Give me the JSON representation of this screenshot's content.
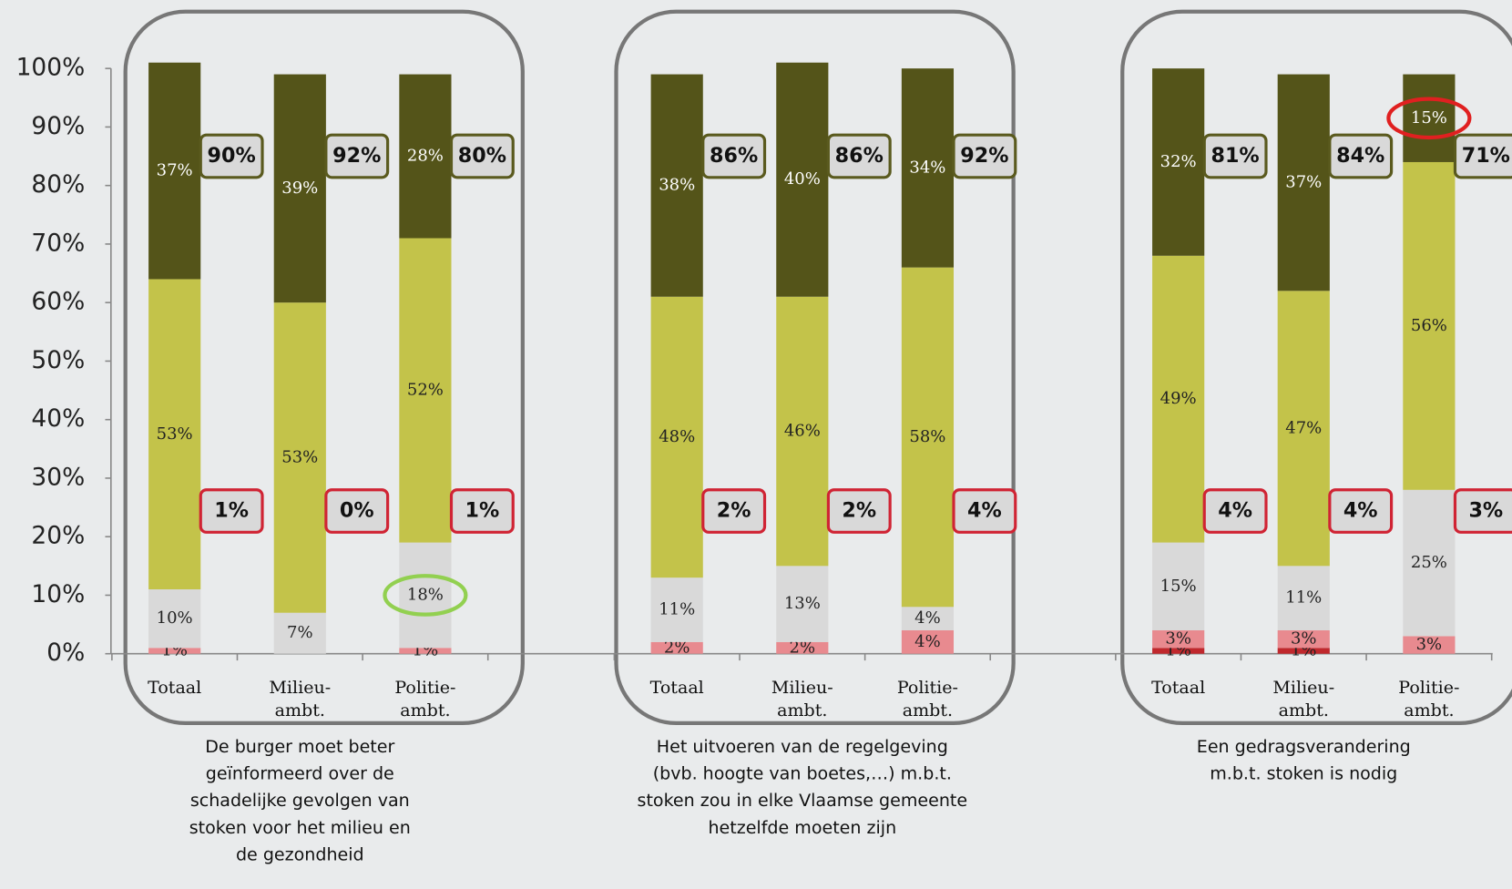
{
  "chart_data": [
    {
      "type": "stacked-bar",
      "categories": [
        [
          "Totaal"
        ],
        [
          "Milieu-",
          "ambt."
        ],
        [
          "Politie-",
          "ambt."
        ]
      ],
      "series": [
        {
          "color": "#e88a8f",
          "values": [
            1,
            null,
            1
          ],
          "value_labels": [
            "1%",
            null,
            "1%"
          ]
        },
        {
          "color": "#d9d9d9",
          "values": [
            10,
            7,
            18
          ],
          "value_labels": [
            "10%",
            "7%",
            "18%"
          ]
        },
        {
          "color": "#c3c34a",
          "values": [
            53,
            53,
            52
          ],
          "value_labels": [
            "53%",
            "53%",
            "52%"
          ]
        },
        {
          "color": "#545419",
          "values": [
            37,
            39,
            28
          ],
          "value_labels": [
            "37%",
            "39%",
            "28%"
          ]
        }
      ],
      "top_box": {
        "values": [
          90,
          92,
          80
        ],
        "value_labels": [
          "90%",
          "92%",
          "80%"
        ],
        "color": "#5a5a1e"
      },
      "bottom_box": {
        "values": [
          1,
          0,
          1
        ],
        "value_labels": [
          "1%",
          "0%",
          "1%"
        ],
        "color": "#d02434"
      },
      "highlight": {
        "series": 1,
        "index": 2,
        "color": "#92d050"
      },
      "ylim": [
        0,
        100
      ],
      "yticks": [
        {
          "value": 0,
          "label": "0%"
        },
        {
          "value": 10,
          "label": "10%"
        },
        {
          "value": 20,
          "label": "20%"
        },
        {
          "value": 30,
          "label": "30%"
        },
        {
          "value": 40,
          "label": "40%"
        },
        {
          "value": 50,
          "label": "50%"
        },
        {
          "value": 60,
          "label": "60%"
        },
        {
          "value": 70,
          "label": "70%"
        },
        {
          "value": 80,
          "label": "80%"
        },
        {
          "value": 90,
          "label": "90%"
        },
        {
          "value": 100,
          "label": "100%"
        }
      ],
      "caption": [
        "De burger moet beter",
        "geïnformeerd over de",
        "schadelijke gevolgen van",
        "stoken voor het milieu en",
        "de gezondheid"
      ]
    },
    {
      "type": "stacked-bar",
      "categories": [
        [
          "Totaal"
        ],
        [
          "Milieu-",
          "ambt."
        ],
        [
          "Politie-",
          "ambt."
        ]
      ],
      "series": [
        {
          "color": "#e88a8f",
          "values": [
            2,
            2,
            4
          ],
          "value_labels": [
            "2%",
            "2%",
            "4%"
          ]
        },
        {
          "color": "#d9d9d9",
          "values": [
            11,
            13,
            4
          ],
          "value_labels": [
            "11%",
            "13%",
            "4%"
          ]
        },
        {
          "color": "#c3c34a",
          "values": [
            48,
            46,
            58
          ],
          "value_labels": [
            "48%",
            "46%",
            "58%"
          ]
        },
        {
          "color": "#545419",
          "values": [
            38,
            40,
            34
          ],
          "value_labels": [
            "38%",
            "40%",
            "34%"
          ]
        }
      ],
      "top_box": {
        "values": [
          86,
          86,
          92
        ],
        "value_labels": [
          "86%",
          "86%",
          "92%"
        ],
        "color": "#5a5a1e"
      },
      "bottom_box": {
        "values": [
          2,
          2,
          4
        ],
        "value_labels": [
          "2%",
          "2%",
          "4%"
        ],
        "color": "#d02434"
      },
      "ylim": [
        0,
        100
      ],
      "caption": [
        "Het uitvoeren van de regelgeving",
        "(bvb. hoogte van boetes,…) m.b.t.",
        "stoken zou in elke Vlaamse gemeente",
        "hetzelfde moeten zijn"
      ]
    },
    {
      "type": "stacked-bar",
      "categories": [
        [
          "Totaal"
        ],
        [
          "Milieu-",
          "ambt."
        ],
        [
          "Politie-",
          "ambt."
        ]
      ],
      "series": [
        {
          "color": "#c0282d",
          "values": [
            1,
            1,
            null
          ],
          "value_labels": [
            "1%",
            "1%",
            null
          ]
        },
        {
          "color": "#e88a8f",
          "values": [
            3,
            3,
            3
          ],
          "value_labels": [
            "3%",
            "3%",
            "3%"
          ]
        },
        {
          "color": "#d9d9d9",
          "values": [
            15,
            11,
            25
          ],
          "value_labels": [
            "15%",
            "11%",
            "25%"
          ]
        },
        {
          "color": "#c3c34a",
          "values": [
            49,
            47,
            56
          ],
          "value_labels": [
            "49%",
            "47%",
            "56%"
          ]
        },
        {
          "color": "#545419",
          "values": [
            32,
            37,
            15
          ],
          "value_labels": [
            "32%",
            "37%",
            "15%"
          ]
        }
      ],
      "top_box": {
        "values": [
          81,
          84,
          71
        ],
        "value_labels": [
          "81%",
          "84%",
          "71%"
        ],
        "color": "#5a5a1e"
      },
      "bottom_box": {
        "values": [
          4,
          4,
          3
        ],
        "value_labels": [
          "4%",
          "4%",
          "3%"
        ],
        "color": "#d02434"
      },
      "highlight": {
        "series": 4,
        "index": 2,
        "color": "#e02020"
      },
      "ylim": [
        0,
        100
      ],
      "caption": [
        "Een gedragsverandering",
        "m.b.t. stoken is nodig"
      ]
    }
  ]
}
